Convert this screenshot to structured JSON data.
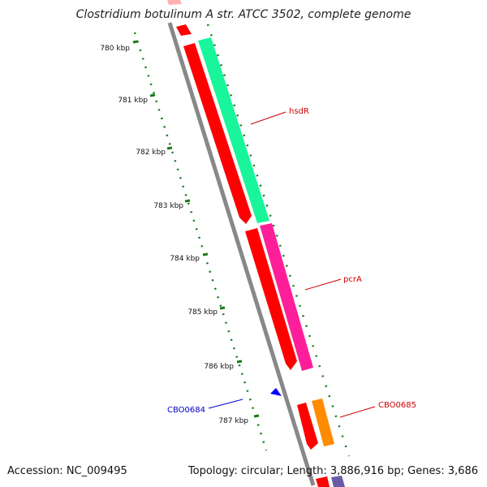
{
  "title": "Clostridium botulinum A str. ATCC 3502, complete genome",
  "footer": {
    "accession": "Accession: NC_009495",
    "summary": "Topology: circular; Length: 3,886,916 bp; Genes: 3,686"
  },
  "ticks": [
    "780 kbp",
    "781 kbp",
    "782 kbp",
    "783 kbp",
    "784 kbp",
    "785 kbp",
    "786 kbp",
    "787 kbp"
  ],
  "gene_labels": {
    "hsdR": "hsdR",
    "pcrA": "pcrA",
    "CBO0684": "CBO0684",
    "CBO0685": "CBO0685"
  },
  "colors": {
    "backbone": "#888888",
    "tick_dots": "#1a7a1a",
    "gene_red": "#ff0000",
    "gene_green": "#19f59a",
    "gene_magenta": "#ff1e9a",
    "gene_orange": "#ff8c00",
    "gene_blue": "#0000ff",
    "gene_purple": "#6a5aa8",
    "label_red": "#cc0000",
    "label_blue": "#0000cc"
  }
}
